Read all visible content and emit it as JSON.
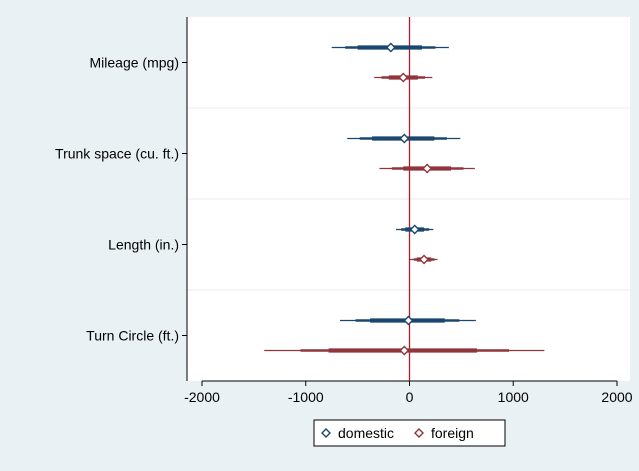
{
  "chart_data": {
    "type": "scatter",
    "xlim": [
      -2000,
      2000
    ],
    "x_ticks": [
      -2000,
      -1000,
      0,
      1000,
      2000
    ],
    "reference_line_x": 0,
    "categories": [
      "Mileage (mpg)",
      "Trunk space (cu. ft.)",
      "Length (in.)",
      "Turn Circle (ft.)"
    ],
    "legend_position": "bottom",
    "grid": "horizontal separators between categories",
    "series": [
      {
        "name": "domestic",
        "color": "#1a476f",
        "points": [
          {
            "category": "Mileage (mpg)",
            "estimate": -180,
            "ci_thin": [
              -750,
              380
            ],
            "ci_mid": [
              -620,
              250
            ],
            "ci_thick": [
              -500,
              120
            ]
          },
          {
            "category": "Trunk space (cu. ft.)",
            "estimate": -50,
            "ci_thin": [
              -600,
              490
            ],
            "ci_mid": [
              -480,
              360
            ],
            "ci_thick": [
              -360,
              240
            ]
          },
          {
            "category": "Length (in.)",
            "estimate": 50,
            "ci_thin": [
              -130,
              230
            ],
            "ci_mid": [
              -80,
              190
            ],
            "ci_thick": [
              -40,
              140
            ]
          },
          {
            "category": "Turn Circle (ft.)",
            "estimate": -10,
            "ci_thin": [
              -670,
              640
            ],
            "ci_mid": [
              -520,
              480
            ],
            "ci_thick": [
              -380,
              340
            ]
          }
        ]
      },
      {
        "name": "foreign",
        "color": "#90353b",
        "points": [
          {
            "category": "Mileage (mpg)",
            "estimate": -60,
            "ci_thin": [
              -340,
              220
            ],
            "ci_mid": [
              -270,
              150
            ],
            "ci_thick": [
              -200,
              80
            ]
          },
          {
            "category": "Trunk space (cu. ft.)",
            "estimate": 170,
            "ci_thin": [
              -290,
              630
            ],
            "ci_mid": [
              -170,
              520
            ],
            "ci_thick": [
              -60,
              400
            ]
          },
          {
            "category": "Length (in.)",
            "estimate": 140,
            "ci_thin": [
              0,
              270
            ],
            "ci_mid": [
              40,
              240
            ],
            "ci_thick": [
              70,
              210
            ]
          },
          {
            "category": "Turn Circle (ft.)",
            "estimate": -50,
            "ci_thin": [
              -1400,
              1300
            ],
            "ci_mid": [
              -1050,
              960
            ],
            "ci_thick": [
              -780,
              650
            ]
          }
        ]
      }
    ]
  }
}
